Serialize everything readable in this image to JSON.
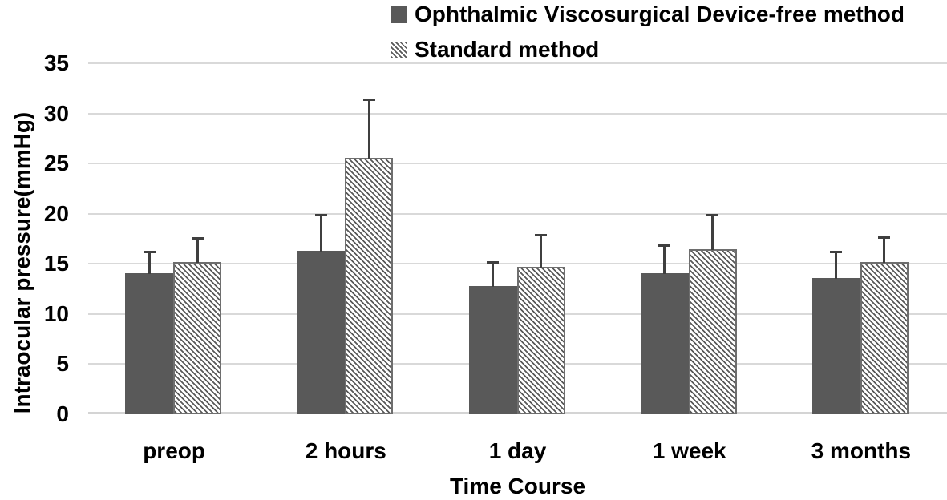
{
  "chart_data": {
    "type": "bar",
    "title": "",
    "categories": [
      "preop",
      "2 hours",
      "1 day",
      "1 week",
      "3 months"
    ],
    "series": [
      {
        "name": "Ophthalmic Viscosurgical Device-free method",
        "values": [
          14.1,
          16.3,
          12.8,
          14.1,
          13.6
        ],
        "errors_plus": [
          2.1,
          3.6,
          2.4,
          2.8,
          2.6
        ],
        "style": "solid"
      },
      {
        "name": "Standard method",
        "values": [
          15.2,
          25.6,
          14.7,
          16.5,
          15.2
        ],
        "errors_plus": [
          2.4,
          5.8,
          3.2,
          3.4,
          2.5
        ],
        "style": "hatch"
      }
    ],
    "xlabel": "Time Course",
    "ylabel": "Intraocular pressure(mmHg)",
    "ylim": [
      0,
      35
    ],
    "yticks": [
      0,
      5,
      10,
      15,
      20,
      25,
      30,
      35
    ],
    "grid": true,
    "legend_position": "top-right",
    "error_bars": "plus-direction-only"
  },
  "colors": {
    "bar_fill": "#595959",
    "hatch_stripe": "#595959",
    "hatch_background": "#ffffff",
    "gridline": "#d9d9d9",
    "axis_line": "#d4d4d4",
    "error_bar": "#3f3f3f",
    "text": "#000000",
    "background": "#ffffff"
  }
}
